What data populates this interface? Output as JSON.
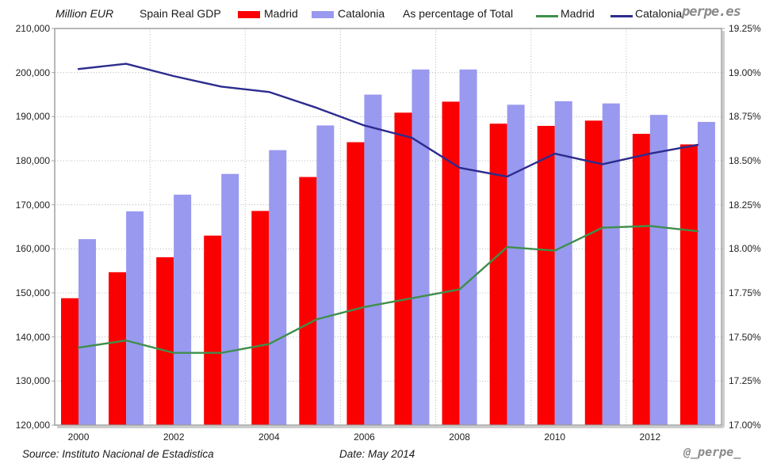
{
  "header": {
    "unit_label": "Million EUR",
    "title": "Spain Real GDP",
    "bar_legend": [
      {
        "label": "Madrid",
        "color": "#fa0000"
      },
      {
        "label": "Catalonia",
        "color": "#9999f0"
      }
    ],
    "pct_label": "As percentage of Total",
    "line_legend": [
      {
        "label": "Madrid",
        "color": "#3f8f4b"
      },
      {
        "label": "Catalonia",
        "color": "#2c2c8e"
      }
    ],
    "watermark": "perpe.es"
  },
  "footer": {
    "source": "Source: Instituto Nacional de Estadistica",
    "date": "Date: May 2014",
    "handle": "@_perpe_"
  },
  "chart_data": {
    "type": "bar",
    "subtype": "grouped bars (left axis) + lines (right axis) combo",
    "title": "Spain Real GDP",
    "x": [
      2000,
      2001,
      2002,
      2003,
      2004,
      2005,
      2006,
      2007,
      2008,
      2009,
      2010,
      2011,
      2012,
      2013
    ],
    "bar_series": [
      {
        "name": "Madrid",
        "axis": "left",
        "color": "#fa0000",
        "values": [
          148800,
          154700,
          158100,
          163000,
          168600,
          176300,
          184200,
          190900,
          193400,
          188400,
          187900,
          189100,
          186100,
          183700
        ]
      },
      {
        "name": "Catalonia",
        "axis": "left",
        "color": "#9999f0",
        "values": [
          162200,
          168500,
          172300,
          177000,
          182400,
          188000,
          195000,
          200700,
          200700,
          192700,
          193500,
          193000,
          190400,
          188800
        ]
      }
    ],
    "line_series": [
      {
        "name": "Madrid",
        "axis": "right",
        "color": "#3f8f4b",
        "values": [
          17.44,
          17.48,
          17.41,
          17.41,
          17.46,
          17.6,
          17.67,
          17.72,
          17.77,
          18.01,
          17.99,
          18.12,
          18.13,
          18.1
        ]
      },
      {
        "name": "Catalonia",
        "axis": "right",
        "color": "#2c2c8e",
        "values": [
          19.02,
          19.05,
          18.98,
          18.92,
          18.89,
          18.8,
          18.7,
          18.63,
          18.46,
          18.41,
          18.54,
          18.48,
          18.54,
          18.59
        ]
      }
    ],
    "left_axis": {
      "title": "Million EUR",
      "min": 120000,
      "max": 210000,
      "tick_step": 10000,
      "tick_labels": [
        "210,000",
        "200,000",
        "190,000",
        "180,000",
        "170,000",
        "160,000",
        "150,000",
        "140,000",
        "130,000",
        "120,000"
      ]
    },
    "right_axis": {
      "title": "As percentage of Total",
      "min": 17.0,
      "max": 19.25,
      "tick_step": 0.25,
      "tick_labels": [
        "19.25%",
        "19.00%",
        "18.75%",
        "18.50%",
        "18.25%",
        "18.00%",
        "17.75%",
        "17.50%",
        "17.25%",
        "17.00%"
      ]
    },
    "x_axis": {
      "tick_labels": [
        "2000",
        "2002",
        "2004",
        "2006",
        "2008",
        "2010",
        "2012"
      ]
    },
    "grid": {
      "horizontal": "dotted every 10,000",
      "vertical": "dotted every 2 years"
    },
    "colors": {
      "grid": "#b5b5b5",
      "frame": "#999999",
      "frame_shadow": "#cccccc"
    }
  }
}
